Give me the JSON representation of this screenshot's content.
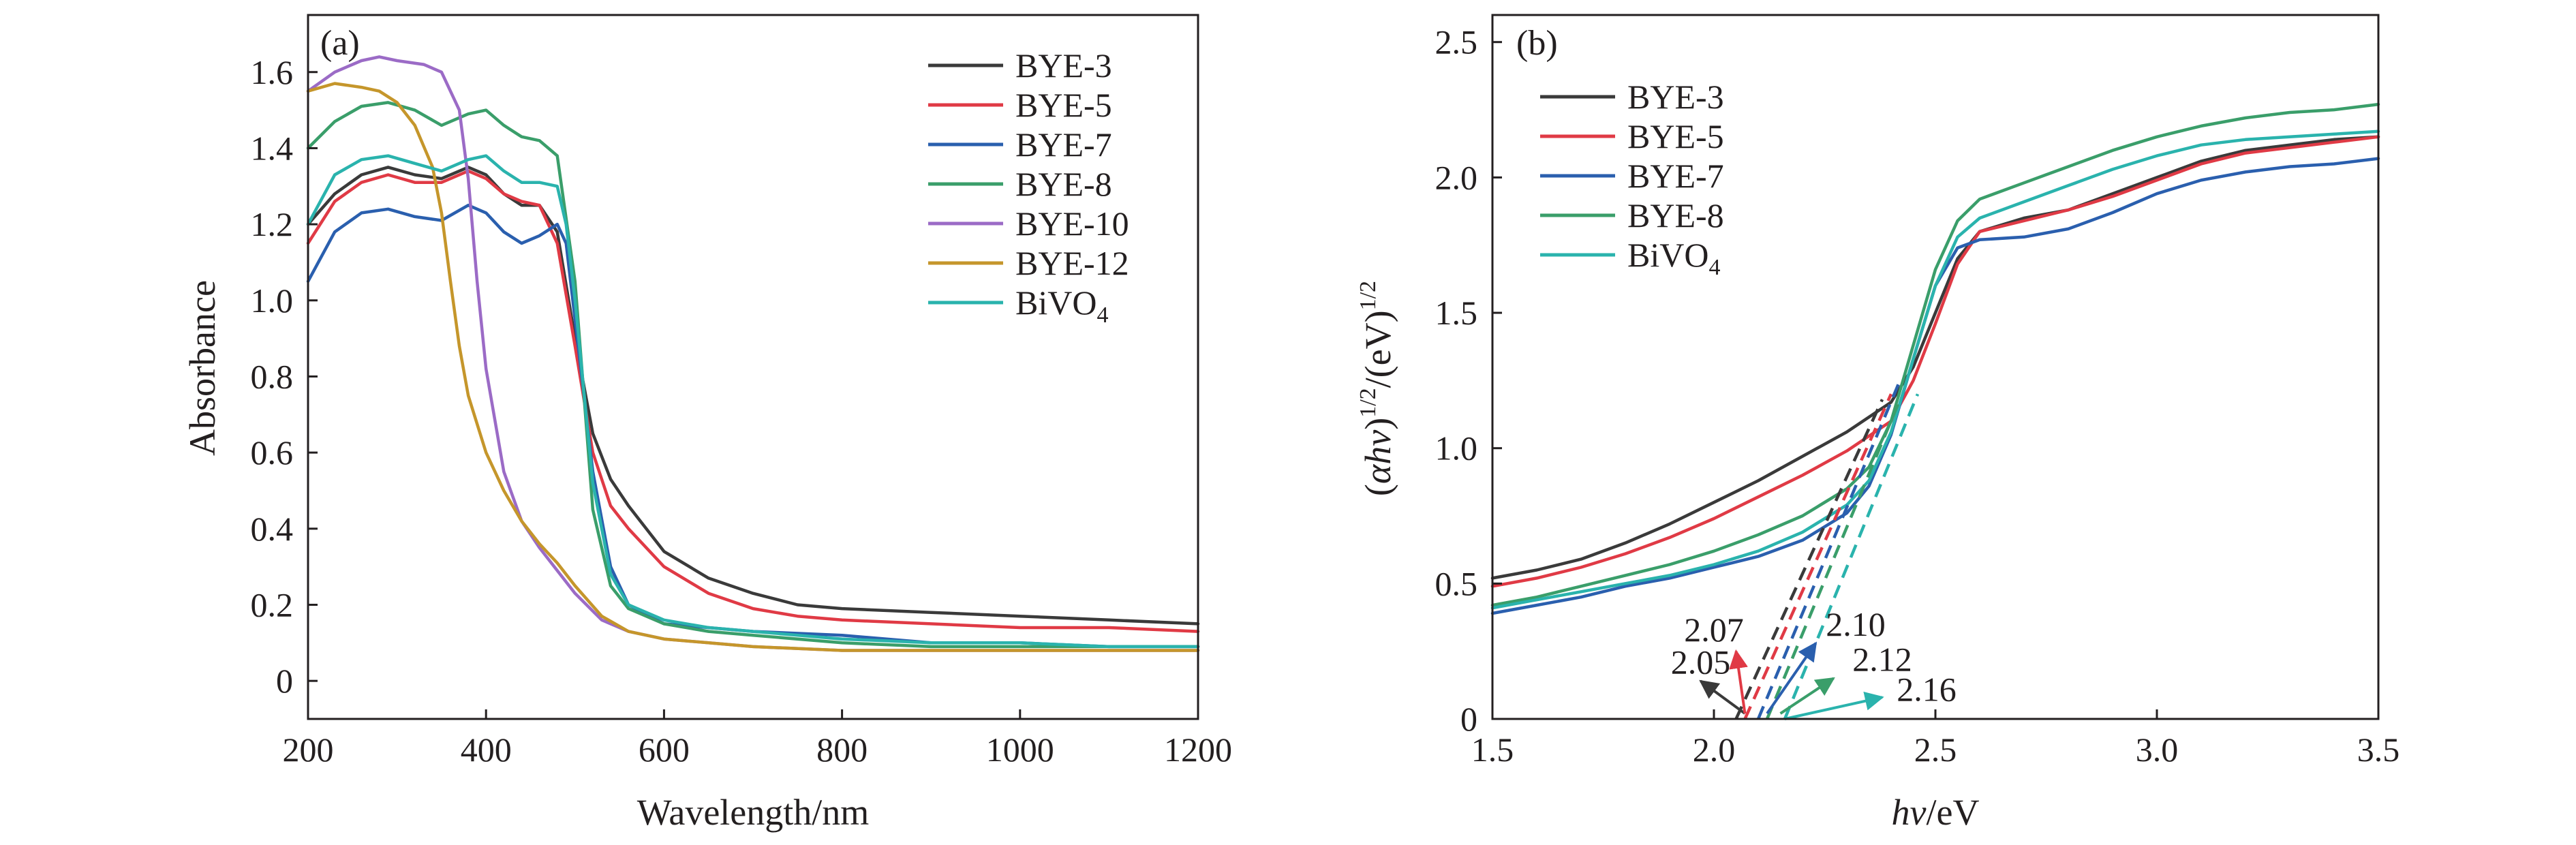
{
  "colors": {
    "BYE-3": "#3a3a3a",
    "BYE-5": "#e03a45",
    "BYE-7": "#2a5fae",
    "BYE-8": "#3a9e6a",
    "BYE-10": "#9b6bc6",
    "BYE-12": "#c5962b",
    "BiVO4": "#2ab3ad"
  },
  "chart_data": [
    {
      "id": "a",
      "type": "line",
      "panel_label": "(a)",
      "xlabel": "Wavelength/nm",
      "ylabel": "Absorbance",
      "xlim": [
        200,
        1200
      ],
      "ylim": [
        -0.1,
        1.75
      ],
      "xticks": [
        200,
        400,
        600,
        800,
        1000,
        1200
      ],
      "xtick_labels": [
        "200",
        "400",
        "600",
        "800",
        "1000",
        "1200"
      ],
      "yticks": [
        0,
        0.2,
        0.4,
        0.6,
        0.8,
        1.0,
        1.2,
        1.4,
        1.6
      ],
      "ytick_labels": [
        "0",
        "0.2",
        "0.4",
        "0.6",
        "0.8",
        "1.0",
        "1.2",
        "1.4",
        "1.6"
      ],
      "grid": false,
      "legend_position": "top-right",
      "series": [
        {
          "name": "BYE-3",
          "x": [
            200,
            230,
            260,
            290,
            320,
            350,
            380,
            400,
            420,
            440,
            460,
            480,
            500,
            520,
            540,
            560,
            600,
            650,
            700,
            750,
            800,
            900,
            1000,
            1100,
            1200
          ],
          "y": [
            1.2,
            1.28,
            1.33,
            1.35,
            1.33,
            1.32,
            1.35,
            1.33,
            1.28,
            1.25,
            1.25,
            1.18,
            0.9,
            0.65,
            0.53,
            0.46,
            0.34,
            0.27,
            0.23,
            0.2,
            0.19,
            0.18,
            0.17,
            0.16,
            0.15
          ]
        },
        {
          "name": "BYE-5",
          "x": [
            200,
            230,
            260,
            290,
            320,
            350,
            380,
            400,
            420,
            440,
            460,
            480,
            500,
            520,
            540,
            560,
            600,
            650,
            700,
            750,
            800,
            900,
            1000,
            1100,
            1200
          ],
          "y": [
            1.15,
            1.26,
            1.31,
            1.33,
            1.31,
            1.31,
            1.34,
            1.32,
            1.28,
            1.26,
            1.25,
            1.15,
            0.88,
            0.6,
            0.46,
            0.4,
            0.3,
            0.23,
            0.19,
            0.17,
            0.16,
            0.15,
            0.14,
            0.14,
            0.13
          ]
        },
        {
          "name": "BYE-7",
          "x": [
            200,
            230,
            260,
            290,
            320,
            350,
            380,
            400,
            420,
            440,
            460,
            480,
            490,
            500,
            520,
            540,
            560,
            600,
            650,
            700,
            800,
            900,
            1000,
            1100,
            1200
          ],
          "y": [
            1.05,
            1.18,
            1.23,
            1.24,
            1.22,
            1.21,
            1.25,
            1.23,
            1.18,
            1.15,
            1.17,
            1.2,
            1.15,
            0.95,
            0.55,
            0.3,
            0.2,
            0.15,
            0.14,
            0.13,
            0.12,
            0.1,
            0.1,
            0.09,
            0.09
          ]
        },
        {
          "name": "BYE-8",
          "x": [
            200,
            230,
            260,
            290,
            320,
            350,
            380,
            400,
            420,
            440,
            460,
            480,
            500,
            510,
            520,
            540,
            560,
            600,
            650,
            700,
            800,
            900,
            1000,
            1100,
            1200
          ],
          "y": [
            1.4,
            1.47,
            1.51,
            1.52,
            1.5,
            1.46,
            1.49,
            1.5,
            1.46,
            1.43,
            1.42,
            1.38,
            1.05,
            0.75,
            0.45,
            0.25,
            0.19,
            0.15,
            0.13,
            0.12,
            0.1,
            0.09,
            0.09,
            0.09,
            0.09
          ]
        },
        {
          "name": "BYE-10",
          "x": [
            200,
            230,
            260,
            280,
            300,
            330,
            350,
            370,
            380,
            390,
            400,
            420,
            440,
            460,
            480,
            500,
            530,
            560,
            600,
            650,
            700,
            800,
            900,
            1000,
            1100,
            1200
          ],
          "y": [
            1.55,
            1.6,
            1.63,
            1.64,
            1.63,
            1.62,
            1.6,
            1.5,
            1.32,
            1.05,
            0.82,
            0.55,
            0.42,
            0.35,
            0.29,
            0.23,
            0.16,
            0.13,
            0.11,
            0.1,
            0.09,
            0.08,
            0.08,
            0.08,
            0.08,
            0.08
          ]
        },
        {
          "name": "BYE-12",
          "x": [
            200,
            230,
            260,
            280,
            300,
            320,
            340,
            350,
            360,
            370,
            380,
            400,
            420,
            440,
            460,
            480,
            500,
            530,
            560,
            600,
            650,
            700,
            800,
            900,
            1000,
            1100,
            1200
          ],
          "y": [
            1.55,
            1.57,
            1.56,
            1.55,
            1.52,
            1.46,
            1.35,
            1.23,
            1.05,
            0.88,
            0.75,
            0.6,
            0.5,
            0.42,
            0.36,
            0.31,
            0.25,
            0.17,
            0.13,
            0.11,
            0.1,
            0.09,
            0.08,
            0.08,
            0.08,
            0.08,
            0.08
          ]
        },
        {
          "name": "BiVO4",
          "x": [
            200,
            230,
            260,
            290,
            320,
            350,
            380,
            400,
            420,
            440,
            460,
            480,
            490,
            500,
            520,
            540,
            560,
            600,
            650,
            700,
            800,
            900,
            1000,
            1100,
            1200
          ],
          "y": [
            1.2,
            1.33,
            1.37,
            1.38,
            1.36,
            1.34,
            1.37,
            1.38,
            1.34,
            1.31,
            1.31,
            1.3,
            1.2,
            1.0,
            0.52,
            0.28,
            0.2,
            0.16,
            0.14,
            0.13,
            0.11,
            0.1,
            0.1,
            0.09,
            0.09
          ]
        }
      ]
    },
    {
      "id": "b",
      "type": "line",
      "panel_label": "(b)",
      "xlabel": "hv/eV",
      "ylabel": "(αhv)1/2/(eV)1/2",
      "xlim": [
        1.5,
        3.5
      ],
      "ylim": [
        0,
        2.6
      ],
      "xticks": [
        1.5,
        2.0,
        2.5,
        3.0,
        3.5
      ],
      "xtick_labels": [
        "1.5",
        "2.0",
        "2.5",
        "3.0",
        "3.5"
      ],
      "yticks": [
        0,
        0.5,
        1.0,
        1.5,
        2.0,
        2.5
      ],
      "ytick_labels": [
        "0",
        "0.5",
        "1.0",
        "1.5",
        "2.0",
        "2.5"
      ],
      "grid": false,
      "legend_position": "top-left",
      "series": [
        {
          "name": "BYE-3",
          "x": [
            1.5,
            1.6,
            1.7,
            1.8,
            1.9,
            2.0,
            2.1,
            2.2,
            2.3,
            2.4,
            2.45,
            2.5,
            2.55,
            2.6,
            2.7,
            2.8,
            2.9,
            3.0,
            3.1,
            3.2,
            3.3,
            3.4,
            3.5
          ],
          "y": [
            0.52,
            0.55,
            0.59,
            0.65,
            0.72,
            0.8,
            0.88,
            0.97,
            1.06,
            1.17,
            1.3,
            1.5,
            1.7,
            1.8,
            1.85,
            1.88,
            1.94,
            2.0,
            2.06,
            2.1,
            2.12,
            2.14,
            2.15
          ]
        },
        {
          "name": "BYE-5",
          "x": [
            1.5,
            1.6,
            1.7,
            1.8,
            1.9,
            2.0,
            2.1,
            2.2,
            2.3,
            2.4,
            2.45,
            2.5,
            2.55,
            2.6,
            2.7,
            2.8,
            2.9,
            3.0,
            3.1,
            3.2,
            3.3,
            3.4,
            3.5
          ],
          "y": [
            0.49,
            0.52,
            0.56,
            0.61,
            0.67,
            0.74,
            0.82,
            0.9,
            0.99,
            1.1,
            1.25,
            1.46,
            1.68,
            1.8,
            1.84,
            1.88,
            1.93,
            1.99,
            2.05,
            2.09,
            2.11,
            2.13,
            2.15
          ]
        },
        {
          "name": "BYE-7",
          "x": [
            1.5,
            1.6,
            1.7,
            1.8,
            1.9,
            2.0,
            2.1,
            2.2,
            2.3,
            2.35,
            2.4,
            2.45,
            2.5,
            2.55,
            2.6,
            2.7,
            2.8,
            2.9,
            3.0,
            3.1,
            3.2,
            3.3,
            3.4,
            3.5
          ],
          "y": [
            0.39,
            0.42,
            0.45,
            0.49,
            0.52,
            0.56,
            0.6,
            0.66,
            0.76,
            0.86,
            1.05,
            1.33,
            1.6,
            1.74,
            1.77,
            1.78,
            1.81,
            1.87,
            1.94,
            1.99,
            2.02,
            2.04,
            2.05,
            2.07
          ]
        },
        {
          "name": "BYE-8",
          "x": [
            1.5,
            1.6,
            1.7,
            1.8,
            1.9,
            2.0,
            2.1,
            2.2,
            2.3,
            2.35,
            2.4,
            2.45,
            2.5,
            2.55,
            2.6,
            2.7,
            2.8,
            2.9,
            3.0,
            3.1,
            3.2,
            3.3,
            3.4,
            3.5
          ],
          "y": [
            0.42,
            0.45,
            0.49,
            0.53,
            0.57,
            0.62,
            0.68,
            0.75,
            0.85,
            0.93,
            1.1,
            1.38,
            1.66,
            1.84,
            1.92,
            1.98,
            2.04,
            2.1,
            2.15,
            2.19,
            2.22,
            2.24,
            2.25,
            2.27
          ]
        },
        {
          "name": "BiVO4",
          "x": [
            1.5,
            1.6,
            1.7,
            1.8,
            1.9,
            2.0,
            2.1,
            2.2,
            2.3,
            2.35,
            2.4,
            2.45,
            2.5,
            2.55,
            2.6,
            2.7,
            2.8,
            2.9,
            3.0,
            3.1,
            3.2,
            3.3,
            3.4,
            3.5
          ],
          "y": [
            0.41,
            0.44,
            0.47,
            0.5,
            0.53,
            0.57,
            0.62,
            0.69,
            0.79,
            0.88,
            1.06,
            1.33,
            1.6,
            1.78,
            1.85,
            1.91,
            1.97,
            2.03,
            2.08,
            2.12,
            2.14,
            2.15,
            2.16,
            2.17
          ]
        }
      ],
      "extrapolations": [
        {
          "series": "BYE-3",
          "x0": 2.05,
          "x1": 2.38,
          "y1": 1.18
        },
        {
          "series": "BYE-5",
          "x0": 2.07,
          "x1": 2.4,
          "y1": 1.2
        },
        {
          "series": "BYE-7",
          "x0": 2.1,
          "x1": 2.42,
          "y1": 1.25
        },
        {
          "series": "BYE-8",
          "x0": 2.12,
          "x1": 2.42,
          "y1": 1.18
        },
        {
          "series": "BiVO4",
          "x0": 2.16,
          "x1": 2.46,
          "y1": 1.2
        }
      ],
      "annotations": [
        {
          "text": "2.05",
          "series": "BYE-3",
          "from": [
            2.07,
            0.02
          ],
          "to": [
            1.97,
            0.14
          ],
          "label_at": [
            1.97,
            0.21
          ]
        },
        {
          "text": "2.07",
          "series": "BYE-5",
          "from": [
            2.07,
            0.02
          ],
          "to": [
            2.05,
            0.25
          ],
          "label_at": [
            2.0,
            0.33
          ]
        },
        {
          "text": "2.10",
          "series": "BYE-7",
          "from": [
            2.12,
            0.02
          ],
          "to": [
            2.23,
            0.28
          ],
          "label_at": [
            2.32,
            0.35
          ]
        },
        {
          "text": "2.12",
          "series": "BYE-8",
          "from": [
            2.15,
            0.02
          ],
          "to": [
            2.27,
            0.15
          ],
          "label_at": [
            2.38,
            0.22
          ]
        },
        {
          "text": "2.16",
          "series": "BiVO4",
          "from": [
            2.16,
            0.0
          ],
          "to": [
            2.38,
            0.08
          ],
          "label_at": [
            2.48,
            0.11
          ]
        }
      ]
    }
  ]
}
